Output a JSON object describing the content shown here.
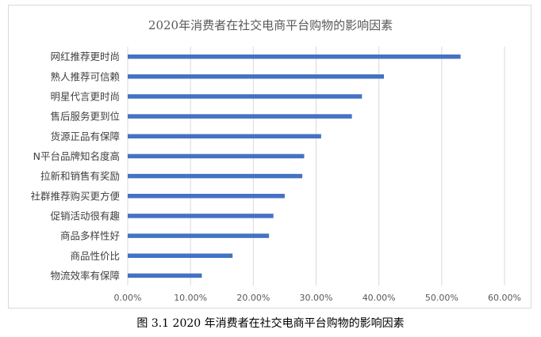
{
  "caption": "图 3.1 2020 年消费者在社交电商平台购物的影响因素",
  "chart_data": {
    "type": "bar",
    "orientation": "horizontal",
    "title": "2020年消费者在社交电商平台购物的影响因素",
    "xlabel": "",
    "ylabel": "",
    "categories": [
      "网红推荐更时尚",
      "熟人推荐可信赖",
      "明星代言更时尚",
      "售后服务更到位",
      "货源正品有保障",
      "N平台品牌知名度高",
      "拉新和销售有奖励",
      "社群推荐购买更方便",
      "促销活动很有趣",
      "商品多样性好",
      "商品性价比",
      "物流效率有保障"
    ],
    "values": [
      53.0,
      40.8,
      37.3,
      35.7,
      30.8,
      28.1,
      27.8,
      25.0,
      23.2,
      22.5,
      16.7,
      11.8
    ],
    "xlim": [
      0,
      60
    ],
    "xticks": [
      "0.00%",
      "10.00%",
      "20.00%",
      "30.00%",
      "40.00%",
      "50.00%",
      "60.00%"
    ],
    "grid": "vertical",
    "legend": "none",
    "bar_color": "#4472c4"
  }
}
